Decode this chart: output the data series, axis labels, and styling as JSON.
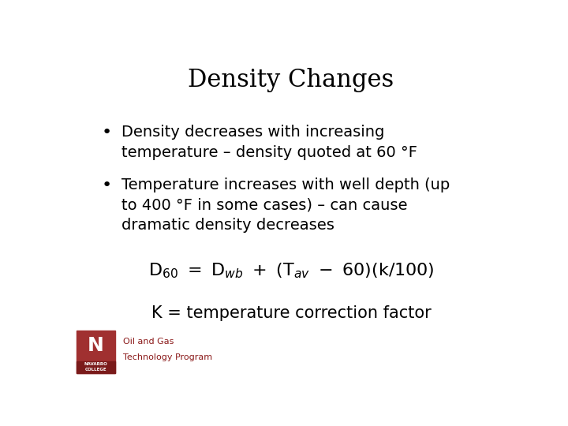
{
  "title": "Density Changes",
  "title_fontsize": 22,
  "bg_color": "#ffffff",
  "text_color": "#000000",
  "bullet1_line1": "Density decreases with increasing",
  "bullet1_line2": "temperature – density quoted at 60 °F",
  "bullet2_line1": "Temperature increases with well depth (up",
  "bullet2_line2": "to 400 °F in some cases) – can cause",
  "bullet2_line3": "dramatic density decreases",
  "formula": "$\\mathregular{D}_{60} = \\mathregular{D}_{wb} + (\\mathregular{T}_{av} - 60)(\\mathregular{k}/100)$",
  "k_note": "K = temperature correction factor",
  "logo_text1": "Oil and Gas",
  "logo_text2": "Technology Program",
  "logo_color": "#8B1A1A",
  "body_fontsize": 14,
  "formula_fontsize": 16,
  "knote_fontsize": 15,
  "logo_fontsize": 8
}
